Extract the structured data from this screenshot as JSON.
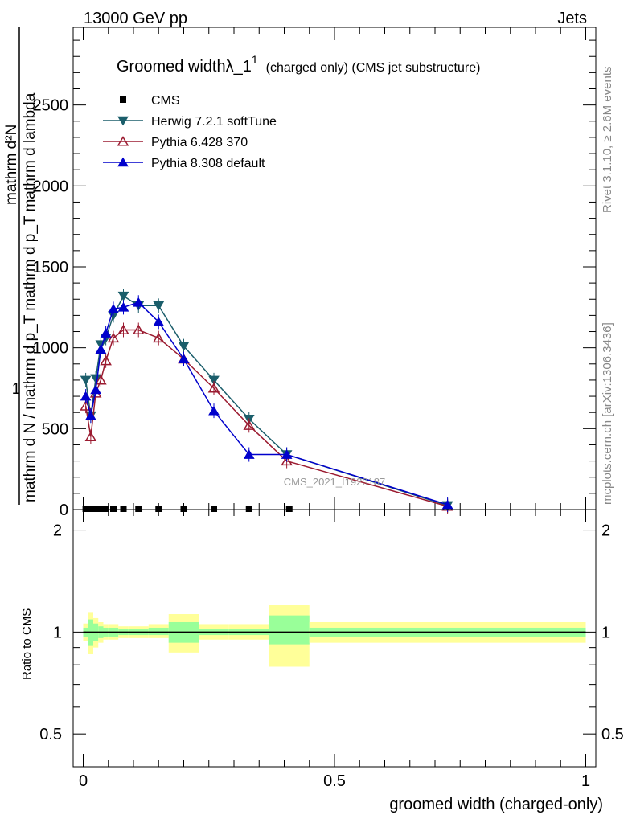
{
  "header": {
    "left": "13000 GeV pp",
    "right": "Jets"
  },
  "side": {
    "rivet": "Rivet 3.1.10, ≥ 2.6M events",
    "mcplots": "mcplots.cern.ch [arXiv:1306.3436]"
  },
  "chart_data": [
    {
      "type": "line",
      "title": "Groomed widthλ_1",
      "title_sup": "1",
      "title_note": "(charged only) (CMS jet substructure)",
      "watermark": "CMS_2021_I1920187",
      "ylabel_num": "1",
      "ylabel_den": "mathrm d N / mathrm d p_T mathrm d p_T mathrm d lambda",
      "ylabel_extra": "mathrm d²N",
      "ylim": [
        0,
        2980
      ],
      "xlim": [
        -0.02,
        1.02
      ],
      "yticks": [
        0,
        500,
        1000,
        1500,
        2000,
        2500
      ],
      "grid": false,
      "legend_position": "top-left",
      "series": [
        {
          "name": "CMS",
          "color": "#000000",
          "marker": "square",
          "x": [
            0.005,
            0.015,
            0.025,
            0.035,
            0.045,
            0.06,
            0.08,
            0.11,
            0.15,
            0.2,
            0.26,
            0.33,
            0.41
          ],
          "y": [
            0,
            0,
            0,
            0,
            0,
            0,
            0,
            0,
            0,
            0,
            0,
            0,
            0
          ]
        },
        {
          "name": "Herwig 7.2.1 softTune",
          "color": "#1b5e6b",
          "marker": "triangle-down",
          "x": [
            0.005,
            0.015,
            0.025,
            0.035,
            0.045,
            0.06,
            0.08,
            0.11,
            0.15,
            0.2,
            0.26,
            0.33,
            0.405,
            0.725
          ],
          "y": [
            800,
            580,
            810,
            1020,
            1060,
            1200,
            1320,
            1260,
            1260,
            1010,
            800,
            560,
            340,
            25
          ]
        },
        {
          "name": "Pythia 6.428 370",
          "color": "#9b1b30",
          "marker": "triangle-up-open",
          "x": [
            0.005,
            0.015,
            0.025,
            0.035,
            0.045,
            0.06,
            0.08,
            0.11,
            0.15,
            0.2,
            0.26,
            0.33,
            0.405,
            0.725
          ],
          "y": [
            640,
            450,
            720,
            800,
            920,
            1060,
            1110,
            1110,
            1060,
            930,
            750,
            520,
            300,
            20
          ]
        },
        {
          "name": "Pythia 8.308 default",
          "color": "#0000cc",
          "marker": "triangle-up",
          "x": [
            0.005,
            0.015,
            0.025,
            0.035,
            0.045,
            0.06,
            0.08,
            0.11,
            0.15,
            0.2,
            0.26,
            0.33,
            0.405,
            0.725
          ],
          "y": [
            700,
            580,
            740,
            990,
            1090,
            1240,
            1250,
            1280,
            1160,
            930,
            610,
            340,
            340,
            30
          ]
        }
      ]
    },
    {
      "type": "area",
      "ylabel": "Ratio to CMS",
      "xlabel": "groomed width (charged-only)",
      "xlim": [
        -0.02,
        1.02
      ],
      "ylim": [
        0.4,
        2.3
      ],
      "log_y": true,
      "yticks": [
        0.5,
        1,
        2
      ],
      "xticks": [
        0,
        0.5,
        1
      ],
      "xtick_labels": [
        "0",
        "0.5",
        "1"
      ],
      "bins": [
        0,
        0.01,
        0.02,
        0.03,
        0.04,
        0.05,
        0.07,
        0.09,
        0.13,
        0.17,
        0.23,
        0.29,
        0.37,
        0.45,
        1.0
      ],
      "band_inner_lo": [
        0.97,
        0.91,
        0.94,
        0.96,
        0.97,
        0.97,
        0.98,
        0.98,
        0.98,
        0.93,
        0.98,
        0.98,
        0.92,
        0.97
      ],
      "band_inner_hi": [
        1.03,
        1.09,
        1.06,
        1.04,
        1.03,
        1.03,
        1.02,
        1.02,
        1.03,
        1.07,
        1.02,
        1.02,
        1.12,
        1.03
      ],
      "band_outer_lo": [
        0.94,
        0.86,
        0.9,
        0.93,
        0.95,
        0.95,
        0.96,
        0.96,
        0.96,
        0.87,
        0.95,
        0.95,
        0.79,
        0.93
      ],
      "band_outer_hi": [
        1.06,
        1.14,
        1.1,
        1.07,
        1.05,
        1.05,
        1.04,
        1.04,
        1.05,
        1.13,
        1.05,
        1.05,
        1.2,
        1.07
      ],
      "colors": {
        "inner": "#99ff99",
        "outer": "#ffff99",
        "reference": "#000000"
      }
    }
  ],
  "footer": {
    "xlabel": "groomed width (charged-only)"
  }
}
